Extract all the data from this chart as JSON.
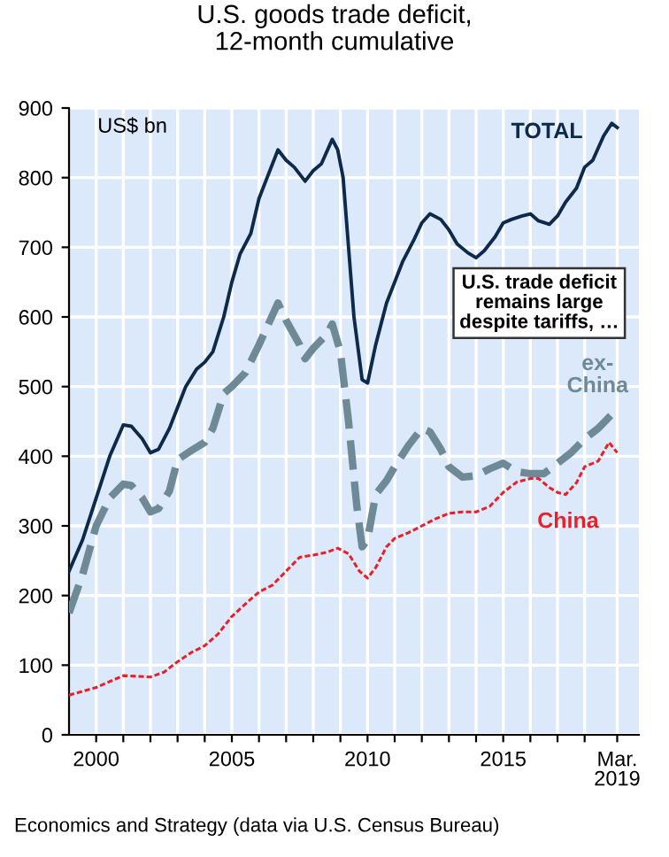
{
  "chart_data": {
    "type": "line",
    "title": "U.S. goods trade deficit,\n12-month cumulative",
    "ylabel": "US$ bn",
    "annotations": [
      "U.S. trade deficit\nremains large\ndespite tariffs, …",
      "Economics and Strategy (data via U.S. Census Bureau)"
    ],
    "xlim": [
      1999,
      2020
    ],
    "xticks": [
      2000,
      {
        "value": 2001,
        "label": null
      },
      {
        "value": 2002,
        "label": null
      },
      {
        "value": 2003,
        "label": null
      },
      {
        "value": 2004,
        "label": null
      },
      2005,
      {
        "value": 2006,
        "label": null
      },
      {
        "value": 2007,
        "label": null
      },
      {
        "value": 2008,
        "label": null
      },
      {
        "value": 2009,
        "label": null
      },
      2010,
      {
        "value": 2011,
        "label": null
      },
      {
        "value": 2012,
        "label": null
      },
      {
        "value": 2013,
        "label": null
      },
      {
        "value": 2014,
        "label": null
      },
      2015,
      {
        "value": 2016,
        "label": null
      },
      {
        "value": 2017,
        "label": null
      },
      {
        "value": 2018,
        "label": null
      },
      {
        "value": 2019.2,
        "label": "Mar.\n2019"
      }
    ],
    "ylim": [
      0,
      900
    ],
    "yticks": [
      0,
      100,
      200,
      300,
      400,
      500,
      600,
      700,
      800,
      900
    ],
    "grid": true,
    "legend": false,
    "series": [
      {
        "name": "TOTAL",
        "color": "#0d2a4a",
        "line_style": "solid",
        "x": [
          1999.0,
          1999.5,
          2000,
          2000.5,
          2001,
          2001.3,
          2001.7,
          2002,
          2002.3,
          2002.7,
          2003,
          2003.3,
          2003.7,
          2004,
          2004.3,
          2004.7,
          2005,
          2005.3,
          2005.7,
          2006,
          2006.3,
          2006.7,
          2007,
          2007.3,
          2007.7,
          2008,
          2008.3,
          2008.7,
          2008.9,
          2009.1,
          2009.3,
          2009.5,
          2009.8,
          2010,
          2010.3,
          2010.7,
          2011,
          2011.3,
          2011.7,
          2012,
          2012.3,
          2012.7,
          2013,
          2013.3,
          2013.7,
          2014,
          2014.3,
          2014.7,
          2015,
          2015.3,
          2015.7,
          2016,
          2016.3,
          2016.7,
          2017,
          2017.3,
          2017.7,
          2018,
          2018.3,
          2018.7,
          2019,
          2019.2
        ],
        "values": [
          235,
          280,
          340,
          400,
          445,
          443,
          425,
          405,
          410,
          440,
          470,
          500,
          525,
          535,
          550,
          600,
          650,
          690,
          720,
          770,
          800,
          840,
          825,
          815,
          795,
          810,
          820,
          855,
          840,
          800,
          700,
          600,
          510,
          505,
          560,
          620,
          650,
          680,
          710,
          735,
          748,
          740,
          725,
          705,
          692,
          685,
          695,
          715,
          735,
          740,
          745,
          748,
          738,
          733,
          745,
          765,
          785,
          815,
          825,
          860,
          878,
          872
        ]
      },
      {
        "name": "ex-\nChina",
        "color": "#6e8a96",
        "line_style": "dashed",
        "x": [
          1999,
          1999.5,
          2000,
          2000.5,
          2001,
          2001.3,
          2001.7,
          2002,
          2002.3,
          2002.7,
          2003,
          2003.5,
          2004,
          2004.3,
          2004.7,
          2005,
          2005.5,
          2006,
          2006.7,
          2007,
          2007.5,
          2007.7,
          2008,
          2008.5,
          2008.7,
          2009,
          2009.3,
          2009.6,
          2009.8,
          2010,
          2010.3,
          2010.7,
          2011,
          2011.5,
          2012,
          2012.3,
          2012.7,
          2013,
          2013.5,
          2014,
          2014.5,
          2015,
          2015.5,
          2016,
          2016.5,
          2017,
          2017.5,
          2018,
          2018.5,
          2019,
          2019.2
        ],
        "values": [
          175,
          230,
          300,
          340,
          360,
          358,
          340,
          320,
          325,
          350,
          395,
          408,
          420,
          440,
          490,
          500,
          520,
          560,
          620,
          595,
          560,
          540,
          555,
          575,
          590,
          550,
          450,
          330,
          270,
          280,
          345,
          365,
          385,
          415,
          440,
          435,
          410,
          385,
          370,
          372,
          382,
          390,
          378,
          375,
          375,
          390,
          405,
          425,
          440,
          460,
          457
        ]
      },
      {
        "name": "China",
        "color": "#e8202a",
        "line_style": "dotted",
        "x": [
          1999,
          2000,
          2001,
          2002,
          2002.5,
          2003,
          2003.5,
          2004,
          2004.5,
          2005,
          2005.5,
          2006,
          2006.5,
          2007,
          2007.5,
          2008,
          2008.5,
          2008.9,
          2009.3,
          2009.7,
          2010,
          2010.3,
          2010.7,
          2011,
          2011.5,
          2012,
          2012.5,
          2013,
          2013.5,
          2014,
          2014.5,
          2015,
          2015.5,
          2016,
          2016.3,
          2016.7,
          2017,
          2017.3,
          2017.7,
          2018,
          2018.5,
          2018.9,
          2019.2
        ],
        "values": [
          57,
          68,
          85,
          83,
          90,
          105,
          118,
          128,
          145,
          170,
          188,
          205,
          215,
          235,
          255,
          258,
          262,
          268,
          260,
          235,
          225,
          240,
          270,
          282,
          290,
          300,
          310,
          318,
          320,
          320,
          328,
          348,
          363,
          368,
          368,
          355,
          348,
          345,
          362,
          385,
          393,
          420,
          405
        ]
      }
    ]
  }
}
